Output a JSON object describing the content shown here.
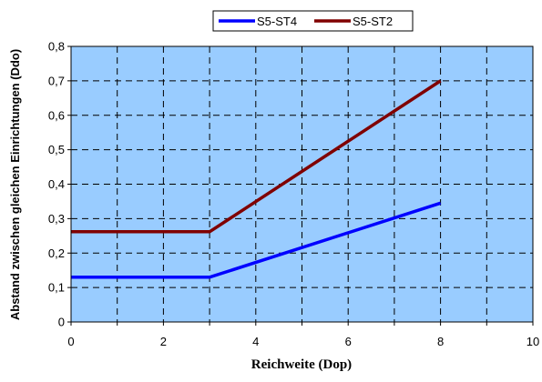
{
  "chart_data": {
    "type": "line",
    "xlabel": "Reichweite (Dop)",
    "ylabel": "Abstand zwischen gleichen Einrichtungen (Ddo)",
    "xlim": [
      0,
      10
    ],
    "ylim": [
      0,
      0.8
    ],
    "x_ticks": [
      "0",
      "2",
      "4",
      "6",
      "8",
      "10"
    ],
    "y_ticks": [
      "0",
      "0,1",
      "0,2",
      "0,3",
      "0,4",
      "0,5",
      "0,6",
      "0,7",
      "0,8"
    ],
    "grid": "dashed, both axes",
    "legend_position": "top-right, above plot",
    "plot_background": "#99ccff",
    "series": [
      {
        "name": "S5-ST4",
        "color": "#0000ff",
        "x": [
          0,
          3,
          8
        ],
        "y": [
          0.13,
          0.13,
          0.345
        ]
      },
      {
        "name": "S5-ST2",
        "color": "#800000",
        "x": [
          0,
          3,
          8
        ],
        "y": [
          0.262,
          0.262,
          0.7
        ]
      }
    ]
  }
}
